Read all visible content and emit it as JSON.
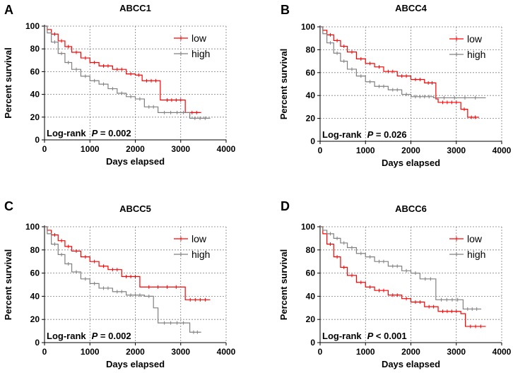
{
  "chart_data": [
    {
      "type": "line",
      "panel_label": "A",
      "title": "ABCC1",
      "xlabel": "Days elapsed",
      "ylabel": "Percent survival",
      "xlim": [
        0,
        4000
      ],
      "ylim": [
        0,
        100
      ],
      "xticks": [
        0,
        1000,
        2000,
        3000,
        4000
      ],
      "yticks": [
        0,
        20,
        40,
        60,
        80,
        100
      ],
      "grid": true,
      "legend_position": "top-right",
      "annotation": {
        "prefix": "Log-rank",
        "p_symbol": "P",
        "p_text": " = 0.002"
      },
      "series": [
        {
          "name": "low",
          "color": "#ff0000",
          "x": [
            0,
            60,
            150,
            300,
            450,
            600,
            800,
            1000,
            1200,
            1500,
            1800,
            2000,
            2150,
            2550,
            2600,
            3100,
            3150,
            3450
          ],
          "y": [
            100,
            97,
            93,
            87,
            82,
            77,
            72,
            68,
            65,
            62,
            58,
            57,
            52,
            35,
            35,
            24,
            24,
            24
          ]
        },
        {
          "name": "high",
          "color": "#808080",
          "x": [
            0,
            60,
            150,
            300,
            450,
            600,
            800,
            1000,
            1200,
            1400,
            1600,
            1800,
            2000,
            2200,
            2500,
            3200,
            3650
          ],
          "y": [
            100,
            94,
            86,
            76,
            68,
            62,
            56,
            52,
            49,
            45,
            41,
            38,
            36,
            29,
            24,
            19,
            19
          ]
        }
      ]
    },
    {
      "type": "line",
      "panel_label": "B",
      "title": "ABCC4",
      "xlabel": "Days elapsed",
      "ylabel": "Percent survival",
      "xlim": [
        0,
        4000
      ],
      "ylim": [
        0,
        100
      ],
      "xticks": [
        0,
        1000,
        2000,
        3000,
        4000
      ],
      "yticks": [
        0,
        20,
        40,
        60,
        80,
        100
      ],
      "grid": true,
      "legend_position": "top-right",
      "annotation": {
        "prefix": "Log-rank",
        "p_symbol": "P",
        "p_text": " = 0.026"
      },
      "series": [
        {
          "name": "low",
          "color": "#ff0000",
          "x": [
            0,
            60,
            150,
            300,
            450,
            600,
            800,
            1000,
            1200,
            1400,
            1700,
            2000,
            2300,
            2550,
            2600,
            3100,
            3250,
            3500
          ],
          "y": [
            100,
            97,
            93,
            88,
            83,
            78,
            72,
            68,
            65,
            61,
            57,
            54,
            51,
            37,
            34,
            28,
            21,
            21
          ]
        },
        {
          "name": "high",
          "color": "#808080",
          "x": [
            0,
            60,
            150,
            300,
            450,
            600,
            800,
            1000,
            1200,
            1500,
            1800,
            2000,
            2500,
            3650
          ],
          "y": [
            100,
            94,
            86,
            77,
            70,
            63,
            57,
            52,
            48,
            45,
            41,
            39,
            38,
            38
          ]
        }
      ]
    },
    {
      "type": "line",
      "panel_label": "C",
      "title": "ABCC5",
      "xlabel": "Days elapsed",
      "ylabel": "Percent survival",
      "xlim": [
        0,
        4000
      ],
      "ylim": [
        0,
        100
      ],
      "xticks": [
        0,
        1000,
        2000,
        3000,
        4000
      ],
      "yticks": [
        0,
        20,
        40,
        60,
        80,
        100
      ],
      "grid": true,
      "legend_position": "top-right",
      "annotation": {
        "prefix": "Log-rank",
        "p_symbol": "P",
        "p_text": " = 0.002"
      },
      "series": [
        {
          "name": "low",
          "color": "#ff0000",
          "x": [
            0,
            60,
            150,
            300,
            450,
            600,
            800,
            1000,
            1200,
            1400,
            1700,
            2100,
            3100,
            3650
          ],
          "y": [
            100,
            97,
            93,
            88,
            83,
            79,
            74,
            70,
            66,
            63,
            57,
            48,
            37,
            37
          ]
        },
        {
          "name": "high",
          "color": "#808080",
          "x": [
            0,
            60,
            150,
            300,
            450,
            600,
            800,
            1000,
            1200,
            1500,
            1800,
            2200,
            2400,
            2500,
            3200,
            3450
          ],
          "y": [
            100,
            94,
            85,
            76,
            68,
            61,
            55,
            51,
            47,
            44,
            41,
            40,
            30,
            17,
            9,
            9
          ]
        }
      ]
    },
    {
      "type": "line",
      "panel_label": "D",
      "title": "ABCC6",
      "xlabel": "Days elapsed",
      "ylabel": "Percent survival",
      "xlim": [
        0,
        4000
      ],
      "ylim": [
        0,
        100
      ],
      "xticks": [
        0,
        1000,
        2000,
        3000,
        4000
      ],
      "yticks": [
        0,
        20,
        40,
        60,
        80,
        100
      ],
      "grid": true,
      "legend_position": "top-right",
      "annotation": {
        "prefix": "Log-rank",
        "p_symbol": "P",
        "p_text": " < 0.001"
      },
      "series": [
        {
          "name": "low",
          "color": "#ff0000",
          "x": [
            0,
            60,
            150,
            300,
            450,
            600,
            800,
            1000,
            1200,
            1500,
            1800,
            2000,
            2300,
            2600,
            3100,
            3200,
            3650
          ],
          "y": [
            100,
            94,
            85,
            74,
            65,
            58,
            52,
            48,
            45,
            41,
            38,
            35,
            31,
            27,
            25,
            14,
            14
          ]
        },
        {
          "name": "high",
          "color": "#808080",
          "x": [
            0,
            60,
            150,
            300,
            450,
            600,
            800,
            1000,
            1200,
            1500,
            1800,
            2000,
            2200,
            2550,
            3150,
            3550
          ],
          "y": [
            100,
            97,
            94,
            90,
            86,
            82,
            77,
            74,
            70,
            66,
            62,
            60,
            55,
            37,
            29,
            29
          ]
        }
      ]
    }
  ]
}
